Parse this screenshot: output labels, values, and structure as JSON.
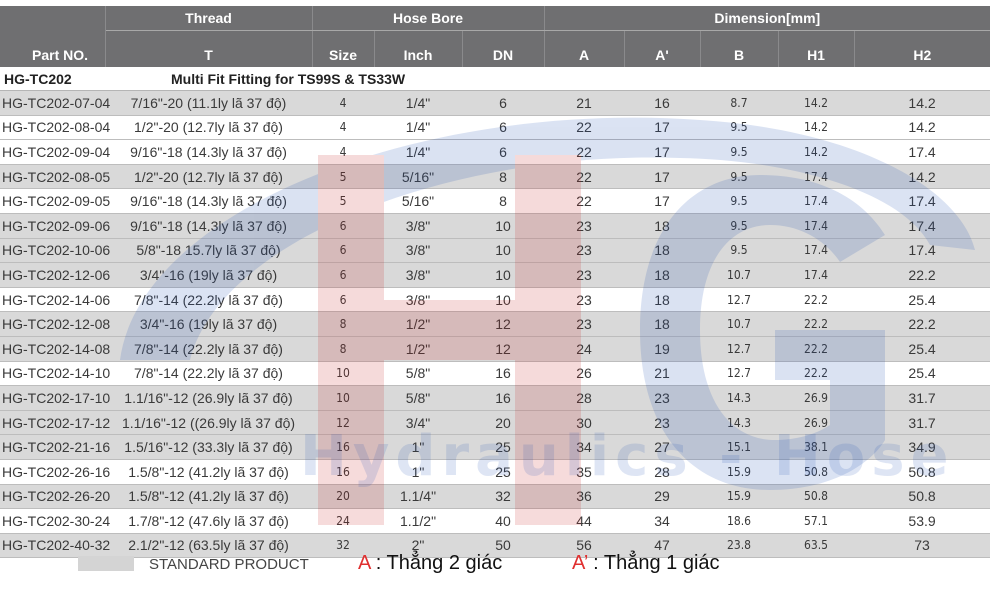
{
  "header": {
    "part_no": "Part NO.",
    "thread_group": "Thread",
    "thread_sub": "T",
    "hose_bore_group": "Hose Bore",
    "size": "Size",
    "inch": "Inch",
    "dn": "DN",
    "dimension_group": "Dimension[mm]",
    "a": "A",
    "a_prime": "A'",
    "b": "B",
    "h1": "H1",
    "h2": "H2"
  },
  "series": {
    "part": "HG-TC202",
    "description": "Multi Fit Fitting for TS99S & TS33W"
  },
  "rows": [
    {
      "part": "HG-TC202-07-04",
      "thread": "7/16\"-20 (11.1ly lã 37 độ)",
      "size": "4",
      "inch": "1/4\"",
      "dn": "6",
      "a": "21",
      "ap": "16",
      "b": "8.7",
      "h1": "14.2",
      "h2": "14.2",
      "std": true
    },
    {
      "part": "HG-TC202-08-04",
      "thread": "1/2\"-20 (12.7ly lã 37 độ)",
      "size": "4",
      "inch": "1/4\"",
      "dn": "6",
      "a": "22",
      "ap": "17",
      "b": "9.5",
      "h1": "14.2",
      "h2": "14.2",
      "std": false
    },
    {
      "part": "HG-TC202-09-04",
      "thread": "9/16\"-18 (14.3ly lã 37 độ)",
      "size": "4",
      "inch": "1/4\"",
      "dn": "6",
      "a": "22",
      "ap": "17",
      "b": "9.5",
      "h1": "14.2",
      "h2": "17.4",
      "std": false
    },
    {
      "part": "HG-TC202-08-05",
      "thread": "1/2\"-20 (12.7ly lã 37 độ)",
      "size": "5",
      "inch": "5/16\"",
      "dn": "8",
      "a": "22",
      "ap": "17",
      "b": "9.5",
      "h1": "17.4",
      "h2": "14.2",
      "std": true
    },
    {
      "part": "HG-TC202-09-05",
      "thread": "9/16\"-18 (14.3ly lã 37 độ)",
      "size": "5",
      "inch": "5/16\"",
      "dn": "8",
      "a": "22",
      "ap": "17",
      "b": "9.5",
      "h1": "17.4",
      "h2": "17.4",
      "std": false
    },
    {
      "part": "HG-TC202-09-06",
      "thread": "9/16\"-18 (14.3ly lã 37 độ)",
      "size": "6",
      "inch": "3/8\"",
      "dn": "10",
      "a": "23",
      "ap": "18",
      "b": "9.5",
      "h1": "17.4",
      "h2": "17.4",
      "std": true
    },
    {
      "part": "HG-TC202-10-06",
      "thread": "5/8\"-18 15.7ly lã 37 độ)",
      "size": "6",
      "inch": "3/8\"",
      "dn": "10",
      "a": "23",
      "ap": "18",
      "b": "9.5",
      "h1": "17.4",
      "h2": "17.4",
      "std": true
    },
    {
      "part": "HG-TC202-12-06",
      "thread": "3/4\"-16 (19ly lã 37 độ)",
      "size": "6",
      "inch": "3/8\"",
      "dn": "10",
      "a": "23",
      "ap": "18",
      "b": "10.7",
      "h1": "17.4",
      "h2": "22.2",
      "std": true
    },
    {
      "part": "HG-TC202-14-06",
      "thread": "7/8\"-14 (22.2ly lã 37 độ)",
      "size": "6",
      "inch": "3/8\"",
      "dn": "10",
      "a": "23",
      "ap": "18",
      "b": "12.7",
      "h1": "22.2",
      "h2": "25.4",
      "std": false
    },
    {
      "part": "HG-TC202-12-08",
      "thread": "3/4\"-16 (19ly lã 37 độ)",
      "size": "8",
      "inch": "1/2\"",
      "dn": "12",
      "a": "23",
      "ap": "18",
      "b": "10.7",
      "h1": "22.2",
      "h2": "22.2",
      "std": true
    },
    {
      "part": "HG-TC202-14-08",
      "thread": "7/8\"-14 (22.2ly lã 37 độ)",
      "size": "8",
      "inch": "1/2\"",
      "dn": "12",
      "a": "24",
      "ap": "19",
      "b": "12.7",
      "h1": "22.2",
      "h2": "25.4",
      "std": true
    },
    {
      "part": "HG-TC202-14-10",
      "thread": "7/8\"-14 (22.2ly lã 37 độ)",
      "size": "10",
      "inch": "5/8\"",
      "dn": "16",
      "a": "26",
      "ap": "21",
      "b": "12.7",
      "h1": "22.2",
      "h2": "25.4",
      "std": false
    },
    {
      "part": "HG-TC202-17-10",
      "thread": "1.1/16\"-12 (26.9ly lã 37 độ)",
      "size": "10",
      "inch": "5/8\"",
      "dn": "16",
      "a": "28",
      "ap": "23",
      "b": "14.3",
      "h1": "26.9",
      "h2": "31.7",
      "std": true
    },
    {
      "part": "HG-TC202-17-12",
      "thread": "1.1/16\"-12 ((26.9ly lã 37 độ)",
      "size": "12",
      "inch": "3/4\"",
      "dn": "20",
      "a": "30",
      "ap": "23",
      "b": "14.3",
      "h1": "26.9",
      "h2": "31.7",
      "std": true
    },
    {
      "part": "HG-TC202-21-16",
      "thread": "1.5/16\"-12 (33.3ly lã 37 độ)",
      "size": "16",
      "inch": "1\"",
      "dn": "25",
      "a": "34",
      "ap": "27",
      "b": "15.1",
      "h1": "38.1",
      "h2": "34.9",
      "std": true
    },
    {
      "part": "HG-TC202-26-16",
      "thread": "1.5/8\"-12 (41.2ly lã 37 độ)",
      "size": "16",
      "inch": "1\"",
      "dn": "25",
      "a": "35",
      "ap": "28",
      "b": "15.9",
      "h1": "50.8",
      "h2": "50.8",
      "std": false
    },
    {
      "part": "HG-TC202-26-20",
      "thread": "1.5/8\"-12 (41.2ly lã 37 độ)",
      "size": "20",
      "inch": "1.1/4\"",
      "dn": "32",
      "a": "36",
      "ap": "29",
      "b": "15.9",
      "h1": "50.8",
      "h2": "50.8",
      "std": true
    },
    {
      "part": "HG-TC202-30-24",
      "thread": "1.7/8\"-12 (47.6ly lã 37 độ)",
      "size": "24",
      "inch": "1.1/2\"",
      "dn": "40",
      "a": "44",
      "ap": "34",
      "b": "18.6",
      "h1": "57.1",
      "h2": "53.9",
      "std": false
    },
    {
      "part": "HG-TC202-40-32",
      "thread": "2.1/2\"-12 (63.5ly lã 37 độ)",
      "size": "32",
      "inch": "2\"",
      "dn": "50",
      "a": "56",
      "ap": "47",
      "b": "23.8",
      "h1": "63.5",
      "h2": "73",
      "std": true
    }
  ],
  "legend": {
    "standard_label": "STANDARD PRODUCT",
    "a_symbol": "A",
    "a_text": " : Thẳng 2 giác",
    "a_prime_symbol": "A’",
    "a_prime_text": " : Thẳng 1 giác"
  },
  "colors": {
    "header_bg": "#6f6f71",
    "standard_row": "#d9d9d9",
    "legend_symbol": "#e03030"
  }
}
